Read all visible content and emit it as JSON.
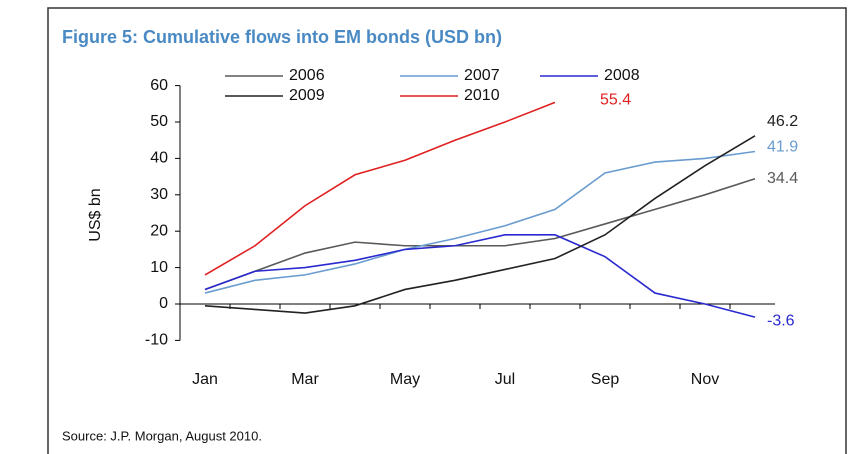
{
  "chart_data": {
    "type": "line",
    "title": "Figure 5: Cumulative flows into EM bonds (USD bn)",
    "y_label": "US$ bn",
    "source": "Source: J.P. Morgan, August 2010.",
    "categories": [
      "Jan",
      null,
      "Mar",
      null,
      "May",
      null,
      "Jul",
      null,
      "Sep",
      null,
      "Nov",
      null
    ],
    "series": [
      {
        "name": "2006",
        "color": "#5a5a5a",
        "values": [
          4,
          9,
          14,
          17,
          16,
          16,
          16,
          18,
          22,
          26,
          30,
          34.4
        ]
      },
      {
        "name": "2007",
        "color": "#6a9ccf",
        "values": [
          3,
          6.5,
          8,
          11,
          15,
          18,
          21.5,
          26,
          36,
          39,
          40,
          41.9
        ]
      },
      {
        "name": "2008",
        "color": "#2a2ad0",
        "values": [
          4,
          9,
          10,
          12,
          15,
          16,
          19,
          19,
          13,
          3,
          0,
          -3.6
        ]
      },
      {
        "name": "2009",
        "color": "#222222",
        "values": [
          -0.5,
          -1.5,
          -2.5,
          -0.5,
          4,
          6.5,
          9.5,
          12.5,
          19,
          29,
          38,
          46.2
        ]
      },
      {
        "name": "2010",
        "color": "#e02020",
        "values": [
          8,
          16,
          27,
          35.5,
          39.5,
          45,
          50,
          55.4,
          null,
          null,
          null,
          null
        ]
      }
    ],
    "ylim": [
      -10,
      60
    ],
    "yticks": [
      -10,
      0,
      10,
      20,
      30,
      40,
      50,
      60
    ]
  }
}
